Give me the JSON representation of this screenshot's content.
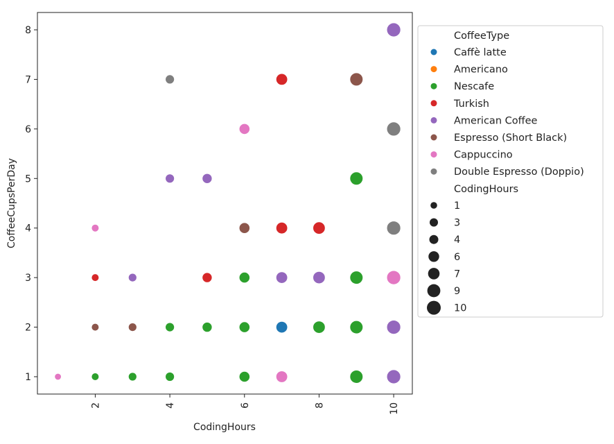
{
  "chart_data": {
    "type": "scatter",
    "xlabel": "CodingHours",
    "ylabel": "CoffeeCupsPerDay",
    "xlim": [
      0.45,
      10.5
    ],
    "ylim": [
      0.65,
      8.35
    ],
    "x_ticks": [
      2,
      4,
      6,
      8,
      10
    ],
    "y_ticks": [
      1,
      2,
      3,
      4,
      5,
      6,
      7,
      8
    ],
    "grid": false,
    "legend_placement": "outside-right",
    "hue_title": "CoffeeType",
    "size_title": "CodingHours",
    "hue_entries": [
      {
        "label": "Caffè latte",
        "color": "#1f77b4"
      },
      {
        "label": "Americano",
        "color": "#ff7f0e"
      },
      {
        "label": "Nescafe",
        "color": "#2ca02c"
      },
      {
        "label": "Turkish",
        "color": "#d62728"
      },
      {
        "label": "American Coffee",
        "color": "#9467bd"
      },
      {
        "label": "Espresso (Short Black)",
        "color": "#8c564b"
      },
      {
        "label": "Cappuccino",
        "color": "#e377c2"
      },
      {
        "label": "Double Espresso (Doppio)",
        "color": "#7f7f7f"
      }
    ],
    "size_entries": [
      {
        "label": "1",
        "value": 1
      },
      {
        "label": "3",
        "value": 3
      },
      {
        "label": "4",
        "value": 4
      },
      {
        "label": "6",
        "value": 6
      },
      {
        "label": "7",
        "value": 7
      },
      {
        "label": "9",
        "value": 9
      },
      {
        "label": "10",
        "value": 10
      }
    ],
    "points": [
      {
        "x": 1,
        "y": 1,
        "type": "Cappuccino"
      },
      {
        "x": 2,
        "y": 1,
        "type": "Nescafe"
      },
      {
        "x": 2,
        "y": 2,
        "type": "Espresso (Short Black)"
      },
      {
        "x": 2,
        "y": 3,
        "type": "Turkish"
      },
      {
        "x": 2,
        "y": 4,
        "type": "Cappuccino"
      },
      {
        "x": 3,
        "y": 1,
        "type": "Nescafe"
      },
      {
        "x": 3,
        "y": 2,
        "type": "Espresso (Short Black)"
      },
      {
        "x": 3,
        "y": 3,
        "type": "American Coffee"
      },
      {
        "x": 4,
        "y": 1,
        "type": "Nescafe"
      },
      {
        "x": 4,
        "y": 2,
        "type": "Nescafe"
      },
      {
        "x": 4,
        "y": 5,
        "type": "American Coffee"
      },
      {
        "x": 4,
        "y": 7,
        "type": "Double Espresso (Doppio)"
      },
      {
        "x": 5,
        "y": 2,
        "type": "Nescafe"
      },
      {
        "x": 5,
        "y": 3,
        "type": "Turkish"
      },
      {
        "x": 5,
        "y": 5,
        "type": "American Coffee"
      },
      {
        "x": 6,
        "y": 1,
        "type": "Nescafe"
      },
      {
        "x": 6,
        "y": 2,
        "type": "Nescafe"
      },
      {
        "x": 6,
        "y": 3,
        "type": "Nescafe"
      },
      {
        "x": 6,
        "y": 4,
        "type": "Espresso (Short Black)"
      },
      {
        "x": 6,
        "y": 6,
        "type": "Cappuccino"
      },
      {
        "x": 7,
        "y": 1,
        "type": "Cappuccino"
      },
      {
        "x": 7,
        "y": 2,
        "type": "Caffè latte"
      },
      {
        "x": 7,
        "y": 3,
        "type": "American Coffee"
      },
      {
        "x": 7,
        "y": 4,
        "type": "Turkish"
      },
      {
        "x": 7,
        "y": 7,
        "type": "Turkish"
      },
      {
        "x": 8,
        "y": 2,
        "type": "Nescafe"
      },
      {
        "x": 8,
        "y": 3,
        "type": "American Coffee"
      },
      {
        "x": 8,
        "y": 4,
        "type": "Turkish"
      },
      {
        "x": 9,
        "y": 1,
        "type": "Nescafe"
      },
      {
        "x": 9,
        "y": 2,
        "type": "Nescafe"
      },
      {
        "x": 9,
        "y": 3,
        "type": "Nescafe"
      },
      {
        "x": 9,
        "y": 5,
        "type": "Nescafe"
      },
      {
        "x": 9,
        "y": 7,
        "type": "Espresso (Short Black)"
      },
      {
        "x": 10,
        "y": 1,
        "type": "American Coffee"
      },
      {
        "x": 10,
        "y": 2,
        "type": "American Coffee"
      },
      {
        "x": 10,
        "y": 3,
        "type": "Cappuccino"
      },
      {
        "x": 10,
        "y": 4,
        "type": "Double Espresso (Doppio)"
      },
      {
        "x": 10,
        "y": 6,
        "type": "Double Espresso (Doppio)"
      },
      {
        "x": 10,
        "y": 8,
        "type": "American Coffee"
      }
    ]
  }
}
